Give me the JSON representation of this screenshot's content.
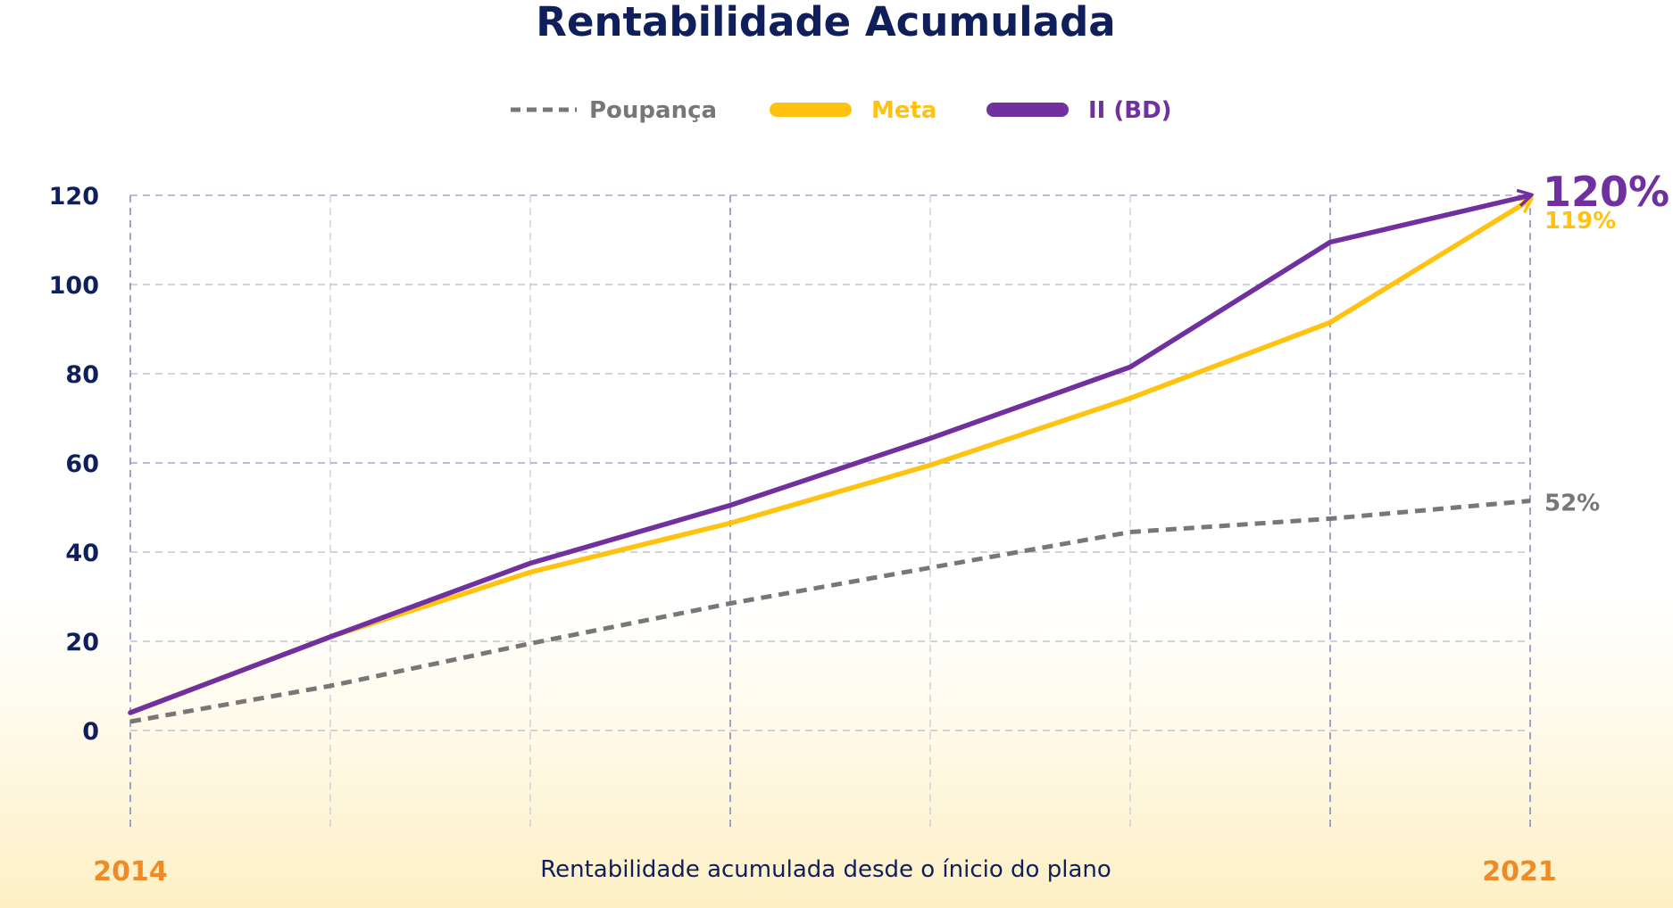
{
  "chart_data": {
    "type": "line",
    "title": "Rentabilidade Acumulada",
    "xlabel": "Rentabilidade acumulada desde o ínicio do plano",
    "ylabel": "",
    "x_start_label": "2014",
    "x_end_label": "2021",
    "ylim": [
      -20,
      120
    ],
    "yticks": [
      "0",
      "20",
      "40",
      "60",
      "80",
      "100",
      "120"
    ],
    "ytick_values": [
      0,
      20,
      40,
      60,
      80,
      100,
      120
    ],
    "grid": true,
    "legend_position": "top-center",
    "series": [
      {
        "name": "Poupança",
        "color": "#777777",
        "style": "dashed",
        "values": [
          2,
          10,
          19.5,
          28.5,
          36.5,
          44.5,
          47.5,
          51.5
        ],
        "end_label": "52%"
      },
      {
        "name": "Meta",
        "color": "#ffc20e",
        "style": "solid",
        "values": [
          4,
          21,
          35.5,
          46.5,
          59.5,
          74.5,
          91.5,
          119
        ],
        "end_label": "119%"
      },
      {
        "name": "II (BD)",
        "color": "#7030a0",
        "style": "solid",
        "values": [
          4,
          21,
          37.5,
          50.5,
          65.5,
          81.5,
          109.5,
          120
        ],
        "end_label": "120%"
      }
    ]
  }
}
